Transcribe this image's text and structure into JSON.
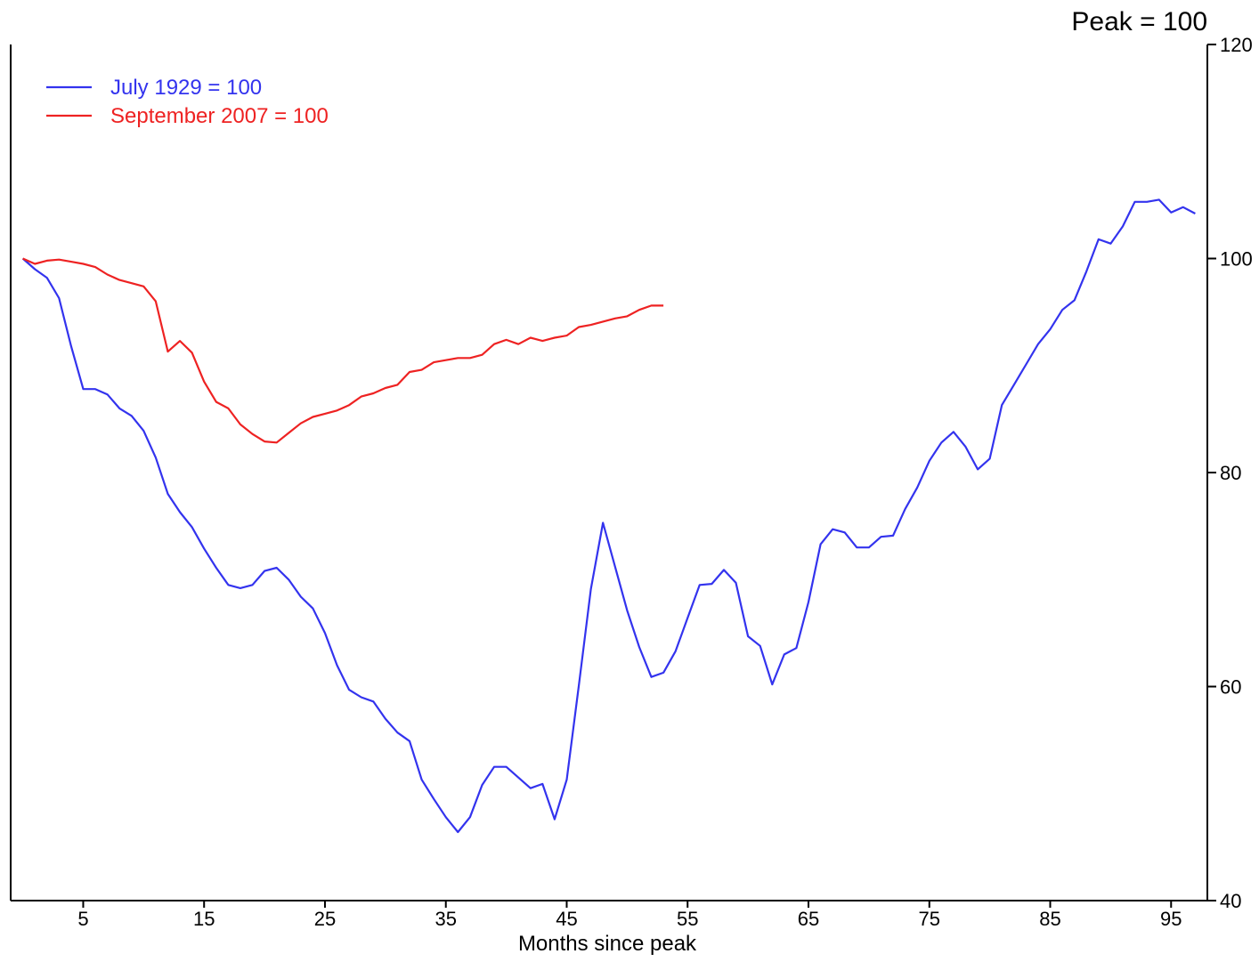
{
  "chart_data": {
    "type": "line",
    "title": "",
    "unit_label": "Peak = 100",
    "xlabel": "Months since peak",
    "ylabel": "",
    "xlim": [
      -1,
      98
    ],
    "ylim": [
      40,
      120
    ],
    "x_ticks": [
      5,
      15,
      25,
      35,
      45,
      55,
      65,
      75,
      85,
      95
    ],
    "y_ticks": [
      40,
      60,
      80,
      100,
      120
    ],
    "y_axis_side": "right",
    "grid": false,
    "legend_position": "top-left",
    "series": [
      {
        "name": "July 1929 = 100",
        "color": "#3333ee",
        "x": [
          0,
          1,
          2,
          3,
          4,
          5,
          6,
          7,
          8,
          9,
          10,
          11,
          12,
          13,
          14,
          15,
          16,
          17,
          18,
          19,
          20,
          21,
          22,
          23,
          24,
          25,
          26,
          27,
          28,
          29,
          30,
          31,
          32,
          33,
          34,
          35,
          36,
          37,
          38,
          39,
          40,
          41,
          42,
          43,
          44,
          45,
          46,
          47,
          48,
          49,
          50,
          51,
          52,
          53,
          54,
          55,
          56,
          57,
          58,
          59,
          60,
          61,
          62,
          63,
          64,
          65,
          66,
          67,
          68,
          69,
          70,
          71,
          72,
          73,
          74,
          75,
          76,
          77,
          78,
          79,
          80,
          81,
          82,
          83,
          84,
          85,
          86,
          87,
          88,
          89,
          90,
          91,
          92,
          93,
          94,
          95,
          96,
          97
        ],
        "y": [
          100,
          99,
          98.2,
          96.3,
          91.8,
          87.8,
          87.8,
          87.3,
          86,
          85.3,
          83.9,
          81.4,
          78,
          76.3,
          74.9,
          72.9,
          71.1,
          69.5,
          69.2,
          69.5,
          70.8,
          71.1,
          70,
          68.4,
          67.3,
          65,
          62,
          59.7,
          59,
          58.6,
          57,
          55.7,
          54.9,
          51.3,
          49.5,
          47.8,
          46.4,
          47.8,
          50.8,
          52.5,
          52.5,
          51.5,
          50.5,
          50.9,
          47.6,
          51.3,
          60.1,
          69.1,
          75.3,
          71.2,
          67.1,
          63.7,
          60.9,
          61.3,
          63.3,
          66.4,
          69.5,
          69.6,
          70.9,
          69.7,
          64.7,
          63.8,
          60.2,
          63,
          63.6,
          67.9,
          73.3,
          74.7,
          74.4,
          73,
          73,
          74,
          74.1,
          76.6,
          78.6,
          81.1,
          82.8,
          83.8,
          82.4,
          80.3,
          81.3,
          86.3,
          88.2,
          90.1,
          92,
          93.4,
          95.2,
          96.1,
          98.8,
          101.8,
          101.4,
          103,
          105.3,
          105.3,
          105.5,
          104.3,
          104.8,
          104.2
        ]
      },
      {
        "name": "September 2007 = 100",
        "color": "#ee2222",
        "x": [
          0,
          1,
          2,
          3,
          4,
          5,
          6,
          7,
          8,
          9,
          10,
          11,
          12,
          13,
          14,
          15,
          16,
          17,
          18,
          19,
          20,
          21,
          22,
          23,
          24,
          25,
          26,
          27,
          28,
          29,
          30,
          31,
          32,
          33,
          34,
          35,
          36,
          37,
          38,
          39,
          40,
          41,
          42,
          43,
          44,
          45,
          46,
          47,
          48,
          49,
          50,
          51,
          52,
          53
        ],
        "y": [
          100,
          99.5,
          99.8,
          99.9,
          99.7,
          99.5,
          99.2,
          98.5,
          98,
          97.7,
          97.4,
          96,
          91.3,
          92.3,
          91.2,
          88.5,
          86.6,
          86,
          84.5,
          83.6,
          82.9,
          82.8,
          83.7,
          84.6,
          85.2,
          85.5,
          85.8,
          86.3,
          87.1,
          87.4,
          87.9,
          88.2,
          89.4,
          89.6,
          90.3,
          90.5,
          90.7,
          90.7,
          91,
          92,
          92.4,
          92,
          92.6,
          92.3,
          92.6,
          92.8,
          93.6,
          93.8,
          94.1,
          94.4,
          94.6,
          95.2,
          95.6,
          95.6
        ]
      }
    ]
  }
}
